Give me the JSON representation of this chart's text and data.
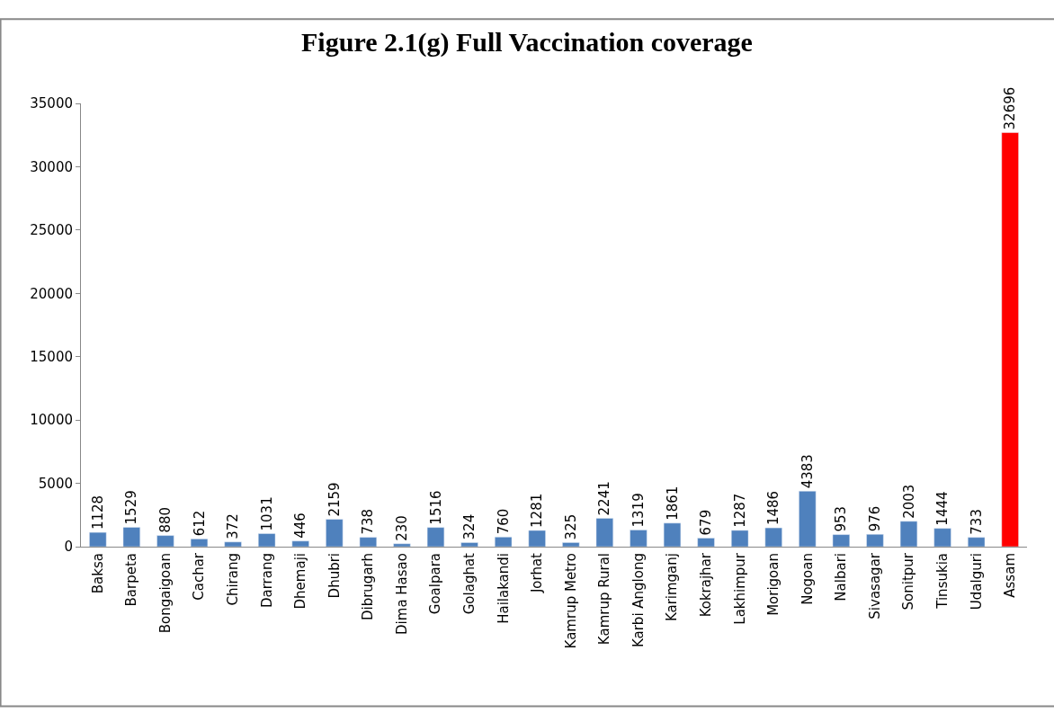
{
  "chart_data": {
    "type": "bar",
    "title": "Figure 2.1(g) Full Vaccination coverage",
    "categories": [
      "Baksa",
      "Barpeta",
      "Bongaigoan",
      "Cachar",
      "Chirang",
      "Darrang",
      "Dhemaji",
      "Dhubri",
      "Dibrugarh",
      "Dima Hasao",
      "Goalpara",
      "Golaghat",
      "Hailakandi",
      "Jorhat",
      "Kamrup Metro",
      "Kamrup Rural",
      "Karbi Anglong",
      "Karimganj",
      "Kokrajhar",
      "Lakhimpur",
      "Morigoan",
      "Nogoan",
      "Nalbari",
      "Sivasagar",
      "Sonitpur",
      "Tinsukia",
      "Udalguri",
      "Assam"
    ],
    "values": [
      1128,
      1529,
      880,
      612,
      372,
      1031,
      446,
      2159,
      738,
      230,
      1516,
      324,
      760,
      1281,
      325,
      2241,
      1319,
      1861,
      679,
      1287,
      1486,
      4383,
      953,
      976,
      2003,
      1444,
      733,
      32696
    ],
    "colors": [
      "#4f81bd",
      "#4f81bd",
      "#4f81bd",
      "#4f81bd",
      "#4f81bd",
      "#4f81bd",
      "#4f81bd",
      "#4f81bd",
      "#4f81bd",
      "#4f81bd",
      "#4f81bd",
      "#4f81bd",
      "#4f81bd",
      "#4f81bd",
      "#4f81bd",
      "#4f81bd",
      "#4f81bd",
      "#4f81bd",
      "#4f81bd",
      "#4f81bd",
      "#4f81bd",
      "#4f81bd",
      "#4f81bd",
      "#4f81bd",
      "#4f81bd",
      "#4f81bd",
      "#4f81bd",
      "#ff0000"
    ],
    "ylim": [
      0,
      35000
    ],
    "yticks": [
      0,
      5000,
      10000,
      15000,
      20000,
      25000,
      30000,
      35000
    ],
    "grid": false,
    "legend": false,
    "data_labels": true
  }
}
